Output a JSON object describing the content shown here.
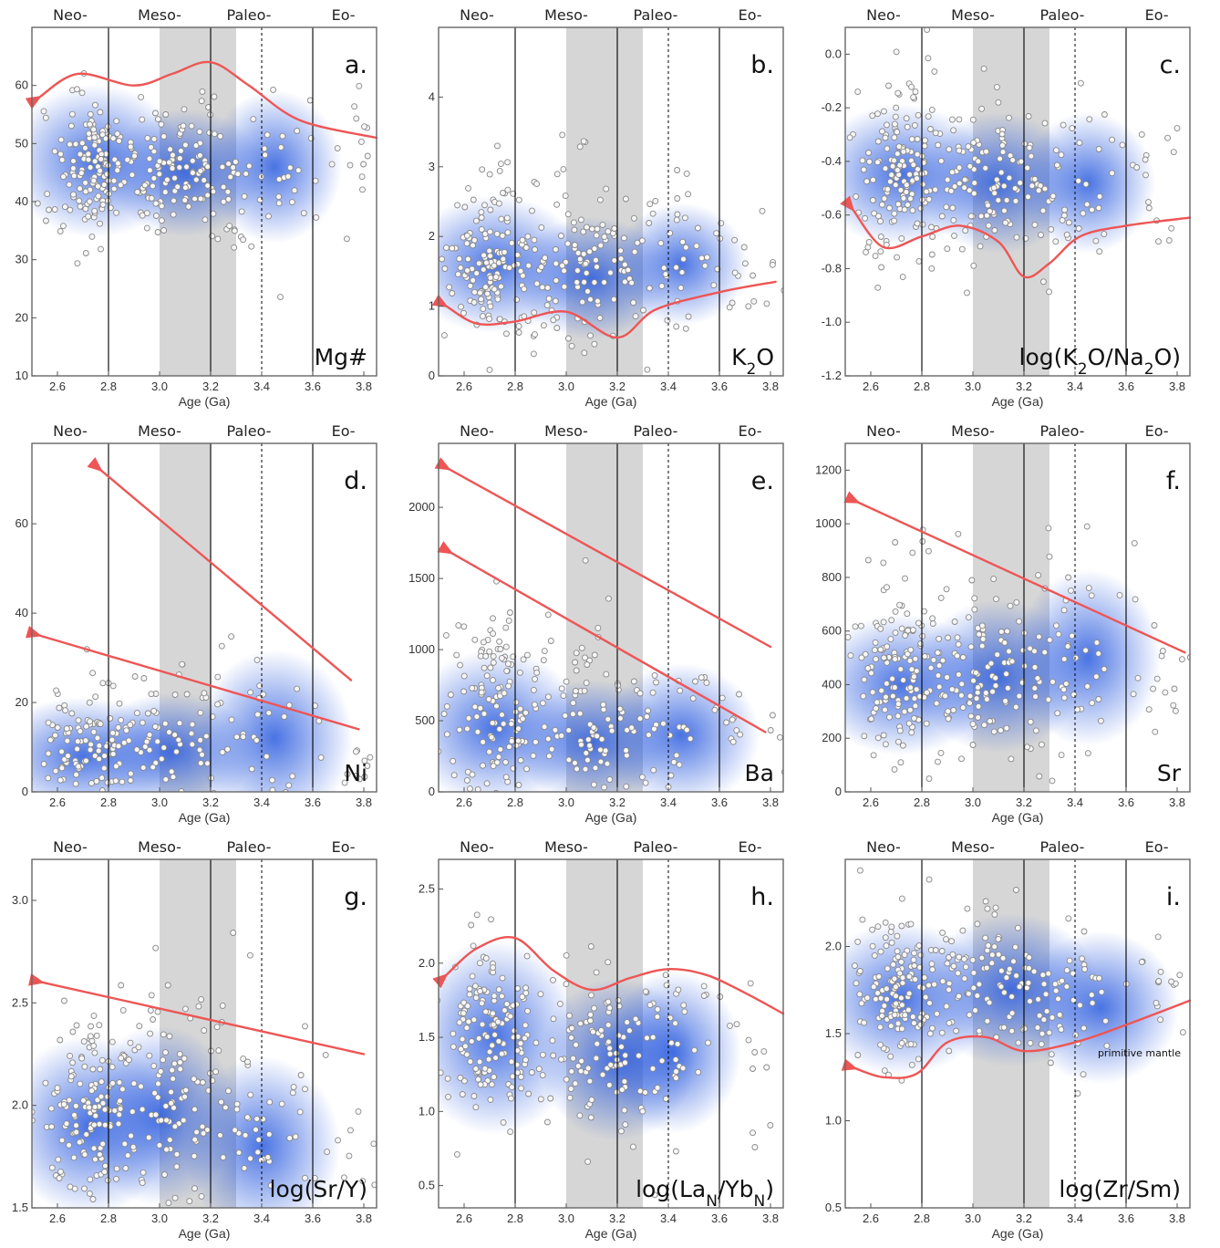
{
  "chart_data": [
    {
      "type": "scatter",
      "panel_label": "a.",
      "variable_label": "Mg#",
      "xlabel": "Age (Ga)",
      "xlim": [
        2.5,
        3.85
      ],
      "ylim": [
        10,
        70
      ],
      "x_ticks": [
        "2.6",
        "2.8",
        "3.0",
        "3.2",
        "3.4",
        "3.6",
        "3.8"
      ],
      "y_ticks": [
        "10",
        "20",
        "30",
        "40",
        "50",
        "60"
      ],
      "eras": [
        "Neo-",
        "Meso-",
        "Paleo-",
        "Eo-"
      ],
      "era_boundaries": [
        2.8,
        3.2,
        3.6
      ],
      "dotted_line": 3.4,
      "shaded_interval": [
        3.0,
        3.3
      ],
      "density": [
        {
          "x": 2.75,
          "y": 47,
          "sx": 0.16,
          "sy": 6
        },
        {
          "x": 3.1,
          "y": 45,
          "sx": 0.14,
          "sy": 5
        },
        {
          "x": 3.45,
          "y": 46,
          "sx": 0.12,
          "sy": 6
        }
      ],
      "scatter_clusters": [
        {
          "x": 2.72,
          "y": 46,
          "sx": 0.09,
          "sy": 6,
          "n": 150
        },
        {
          "x": 3.05,
          "y": 45,
          "sx": 0.12,
          "sy": 6,
          "n": 110
        },
        {
          "x": 3.4,
          "y": 45,
          "sx": 0.12,
          "sy": 7,
          "n": 50
        },
        {
          "x": 3.75,
          "y": 48,
          "sx": 0.06,
          "sy": 5,
          "n": 14
        }
      ],
      "trend_lines": [
        {
          "arrow": "start",
          "points": [
            [
              2.53,
              58
            ],
            [
              2.68,
              62
            ],
            [
              2.9,
              60
            ],
            [
              3.05,
              62
            ],
            [
              3.2,
              64
            ],
            [
              3.35,
              60
            ],
            [
              3.55,
              54
            ],
            [
              3.85,
              51
            ]
          ]
        }
      ]
    },
    {
      "type": "scatter",
      "panel_label": "b.",
      "variable_label": "K2O",
      "xlabel": "Age (Ga)",
      "xlim": [
        2.5,
        3.85
      ],
      "ylim": [
        0,
        5
      ],
      "x_ticks": [
        "2.6",
        "2.8",
        "3.0",
        "3.2",
        "3.4",
        "3.6",
        "3.8"
      ],
      "y_ticks": [
        "0",
        "1",
        "2",
        "3",
        "4"
      ],
      "eras": [
        "Neo-",
        "Meso-",
        "Paleo-",
        "Eo-"
      ],
      "era_boundaries": [
        2.8,
        3.2,
        3.6
      ],
      "dotted_line": 3.4,
      "shaded_interval": [
        3.0,
        3.3
      ],
      "density": [
        {
          "x": 2.72,
          "y": 1.6,
          "sx": 0.16,
          "sy": 0.45
        },
        {
          "x": 3.1,
          "y": 1.4,
          "sx": 0.14,
          "sy": 0.4
        },
        {
          "x": 3.45,
          "y": 1.6,
          "sx": 0.12,
          "sy": 0.4
        }
      ],
      "scatter_clusters": [
        {
          "x": 2.72,
          "y": 1.7,
          "sx": 0.09,
          "sy": 0.6,
          "n": 150
        },
        {
          "x": 3.05,
          "y": 1.6,
          "sx": 0.12,
          "sy": 0.6,
          "n": 110
        },
        {
          "x": 3.4,
          "y": 1.7,
          "sx": 0.12,
          "sy": 0.6,
          "n": 50
        },
        {
          "x": 3.75,
          "y": 1.6,
          "sx": 0.06,
          "sy": 0.5,
          "n": 14
        }
      ],
      "trend_lines": [
        {
          "arrow": "start",
          "points": [
            [
              2.53,
              1.0
            ],
            [
              2.65,
              0.75
            ],
            [
              2.8,
              0.78
            ],
            [
              3.0,
              0.92
            ],
            [
              3.2,
              0.55
            ],
            [
              3.35,
              0.95
            ],
            [
              3.6,
              1.2
            ],
            [
              3.82,
              1.35
            ]
          ]
        }
      ]
    },
    {
      "type": "scatter",
      "panel_label": "c.",
      "variable_label": "log(K2O/Na2O)",
      "xlabel": "Age (Ga)",
      "xlim": [
        2.5,
        3.85
      ],
      "ylim": [
        -1.2,
        0.1
      ],
      "x_ticks": [
        "2.6",
        "2.8",
        "3.0",
        "3.2",
        "3.4",
        "3.6",
        "3.8"
      ],
      "y_ticks": [
        "-1.2",
        "-1.0",
        "-0.8",
        "-0.6",
        "-0.4",
        "-0.2",
        "0.0"
      ],
      "eras": [
        "Neo-",
        "Meso-",
        "Paleo-",
        "Eo-"
      ],
      "era_boundaries": [
        2.8,
        3.2,
        3.6
      ],
      "dotted_line": 3.4,
      "shaded_interval": [
        3.0,
        3.3
      ],
      "density": [
        {
          "x": 2.72,
          "y": -0.45,
          "sx": 0.16,
          "sy": 0.12
        },
        {
          "x": 3.1,
          "y": -0.48,
          "sx": 0.14,
          "sy": 0.12
        },
        {
          "x": 3.45,
          "y": -0.48,
          "sx": 0.12,
          "sy": 0.12
        }
      ],
      "scatter_clusters": [
        {
          "x": 2.72,
          "y": -0.45,
          "sx": 0.09,
          "sy": 0.18,
          "n": 150
        },
        {
          "x": 3.05,
          "y": -0.45,
          "sx": 0.12,
          "sy": 0.16,
          "n": 110
        },
        {
          "x": 3.4,
          "y": -0.5,
          "sx": 0.12,
          "sy": 0.16,
          "n": 50
        },
        {
          "x": 3.75,
          "y": -0.5,
          "sx": 0.06,
          "sy": 0.15,
          "n": 14
        }
      ],
      "trend_lines": [
        {
          "arrow": "start",
          "points": [
            [
              2.53,
              -0.58
            ],
            [
              2.65,
              -0.72
            ],
            [
              2.8,
              -0.68
            ],
            [
              2.95,
              -0.64
            ],
            [
              3.1,
              -0.7
            ],
            [
              3.2,
              -0.83
            ],
            [
              3.3,
              -0.78
            ],
            [
              3.42,
              -0.68
            ],
            [
              3.6,
              -0.64
            ],
            [
              3.85,
              -0.61
            ]
          ]
        }
      ]
    },
    {
      "type": "scatter",
      "panel_label": "d.",
      "variable_label": "Ni",
      "xlabel": "Age (Ga)",
      "xlim": [
        2.5,
        3.85
      ],
      "ylim": [
        0,
        78
      ],
      "x_ticks": [
        "2.6",
        "2.8",
        "3.0",
        "3.2",
        "3.4",
        "3.6",
        "3.8"
      ],
      "y_ticks": [
        "0",
        "20",
        "40",
        "60"
      ],
      "eras": [
        "Neo-",
        "Meso-",
        "Paleo-",
        "Eo-"
      ],
      "era_boundaries": [
        2.8,
        3.2,
        3.6
      ],
      "dotted_line": 3.4,
      "shaded_interval": [
        3.0,
        3.2
      ],
      "density": [
        {
          "x": 2.7,
          "y": 8,
          "sx": 0.17,
          "sy": 6
        },
        {
          "x": 3.05,
          "y": 9,
          "sx": 0.15,
          "sy": 6
        },
        {
          "x": 3.45,
          "y": 12,
          "sx": 0.14,
          "sy": 9
        }
      ],
      "scatter_clusters": [
        {
          "x": 2.7,
          "y": 10,
          "sx": 0.09,
          "sy": 8,
          "n": 100
        },
        {
          "x": 3.0,
          "y": 12,
          "sx": 0.12,
          "sy": 9,
          "n": 70
        },
        {
          "x": 3.4,
          "y": 14,
          "sx": 0.13,
          "sy": 10,
          "n": 40
        },
        {
          "x": 3.75,
          "y": 6,
          "sx": 0.06,
          "sy": 4,
          "n": 10
        }
      ],
      "trend_lines": [
        {
          "arrow": "start",
          "points": [
            [
              2.53,
              35
            ],
            [
              3.78,
              14
            ]
          ]
        },
        {
          "arrow": "start",
          "points": [
            [
              2.77,
              72
            ],
            [
              3.75,
              25
            ]
          ]
        }
      ]
    },
    {
      "type": "scatter",
      "panel_label": "e.",
      "variable_label": "Ba",
      "xlabel": "Age (Ga)",
      "xlim": [
        2.5,
        3.85
      ],
      "ylim": [
        0,
        2450
      ],
      "x_ticks": [
        "2.6",
        "2.8",
        "3.0",
        "3.2",
        "3.4",
        "3.6",
        "3.8"
      ],
      "y_ticks": [
        "0",
        "500",
        "1000",
        "1500",
        "2000"
      ],
      "eras": [
        "Neo-",
        "Meso-",
        "Paleo-",
        "Eo-"
      ],
      "era_boundaries": [
        2.8,
        3.2,
        3.6
      ],
      "dotted_line": 3.4,
      "shaded_interval": [
        3.0,
        3.3
      ],
      "density": [
        {
          "x": 2.72,
          "y": 450,
          "sx": 0.16,
          "sy": 250
        },
        {
          "x": 3.1,
          "y": 350,
          "sx": 0.14,
          "sy": 200
        },
        {
          "x": 3.45,
          "y": 400,
          "sx": 0.14,
          "sy": 230
        }
      ],
      "scatter_clusters": [
        {
          "x": 2.72,
          "y": 550,
          "sx": 0.09,
          "sy": 400,
          "n": 140
        },
        {
          "x": 3.05,
          "y": 500,
          "sx": 0.12,
          "sy": 350,
          "n": 90
        },
        {
          "x": 3.4,
          "y": 500,
          "sx": 0.13,
          "sy": 300,
          "n": 45
        },
        {
          "x": 3.75,
          "y": 500,
          "sx": 0.06,
          "sy": 250,
          "n": 10
        }
      ],
      "trend_lines": [
        {
          "arrow": "start",
          "points": [
            [
              2.54,
              2270
            ],
            [
              3.8,
              1020
            ]
          ]
        },
        {
          "arrow": "start",
          "points": [
            [
              2.55,
              1680
            ],
            [
              3.78,
              420
            ]
          ]
        }
      ]
    },
    {
      "type": "scatter",
      "panel_label": "f.",
      "variable_label": "Sr",
      "xlabel": "Age (Ga)",
      "xlim": [
        2.5,
        3.85
      ],
      "ylim": [
        0,
        1300
      ],
      "x_ticks": [
        "2.6",
        "2.8",
        "3.0",
        "3.2",
        "3.4",
        "3.6",
        "3.8"
      ],
      "y_ticks": [
        "0",
        "200",
        "400",
        "600",
        "800",
        "1000",
        "1200"
      ],
      "eras": [
        "Neo-",
        "Meso-",
        "Paleo-",
        "Eo-"
      ],
      "era_boundaries": [
        2.8,
        3.2,
        3.6
      ],
      "dotted_line": 3.4,
      "shaded_interval": [
        3.0,
        3.3
      ],
      "density": [
        {
          "x": 2.72,
          "y": 400,
          "sx": 0.16,
          "sy": 120
        },
        {
          "x": 3.1,
          "y": 430,
          "sx": 0.15,
          "sy": 130
        },
        {
          "x": 3.45,
          "y": 500,
          "sx": 0.13,
          "sy": 150
        }
      ],
      "scatter_clusters": [
        {
          "x": 2.72,
          "y": 450,
          "sx": 0.09,
          "sy": 180,
          "n": 150
        },
        {
          "x": 3.05,
          "y": 460,
          "sx": 0.12,
          "sy": 170,
          "n": 110
        },
        {
          "x": 3.4,
          "y": 500,
          "sx": 0.12,
          "sy": 170,
          "n": 50
        },
        {
          "x": 3.75,
          "y": 400,
          "sx": 0.06,
          "sy": 130,
          "n": 14
        }
      ],
      "trend_lines": [
        {
          "arrow": "start",
          "points": [
            [
              2.55,
              1080
            ],
            [
              3.83,
              520
            ]
          ]
        }
      ]
    },
    {
      "type": "scatter",
      "panel_label": "g.",
      "variable_label": "log(Sr/Y)",
      "xlabel": "Age (Ga)",
      "xlim": [
        2.5,
        3.85
      ],
      "ylim": [
        1.5,
        3.2
      ],
      "x_ticks": [
        "2.6",
        "2.8",
        "3.0",
        "3.2",
        "3.4",
        "3.6",
        "3.8"
      ],
      "y_ticks": [
        "1.5",
        "2.0",
        "2.5",
        "3.0"
      ],
      "eras": [
        "Neo-",
        "Meso-",
        "Paleo-",
        "Eo-"
      ],
      "era_boundaries": [
        2.8,
        3.2,
        3.6
      ],
      "dotted_line": 3.4,
      "shaded_interval": [
        3.0,
        3.3
      ],
      "density": [
        {
          "x": 2.72,
          "y": 1.9,
          "sx": 0.15,
          "sy": 0.2
        },
        {
          "x": 3.0,
          "y": 1.95,
          "sx": 0.14,
          "sy": 0.2
        },
        {
          "x": 3.4,
          "y": 1.8,
          "sx": 0.14,
          "sy": 0.2
        }
      ],
      "scatter_clusters": [
        {
          "x": 2.72,
          "y": 2.0,
          "sx": 0.09,
          "sy": 0.25,
          "n": 150
        },
        {
          "x": 3.05,
          "y": 2.0,
          "sx": 0.12,
          "sy": 0.28,
          "n": 100
        },
        {
          "x": 3.4,
          "y": 1.95,
          "sx": 0.12,
          "sy": 0.25,
          "n": 45
        },
        {
          "x": 3.75,
          "y": 1.8,
          "sx": 0.06,
          "sy": 0.15,
          "n": 12
        }
      ],
      "trend_lines": [
        {
          "arrow": "start",
          "points": [
            [
              2.54,
              2.6
            ],
            [
              3.8,
              2.25
            ]
          ]
        }
      ]
    },
    {
      "type": "scatter",
      "panel_label": "h.",
      "variable_label": "log(LaN/YbN)",
      "xlabel": "Age (Ga)",
      "xlim": [
        2.5,
        3.85
      ],
      "ylim": [
        0.35,
        2.7
      ],
      "x_ticks": [
        "2.6",
        "2.8",
        "3.0",
        "3.2",
        "3.4",
        "3.6",
        "3.8"
      ],
      "y_ticks": [
        "0.5",
        "1.0",
        "1.5",
        "2.0",
        "2.5"
      ],
      "eras": [
        "Neo-",
        "Meso-",
        "Paleo-",
        "Eo-"
      ],
      "era_boundaries": [
        2.8,
        3.2,
        3.6
      ],
      "dotted_line": 3.4,
      "shaded_interval": [
        3.0,
        3.3
      ],
      "density": [
        {
          "x": 2.72,
          "y": 1.5,
          "sx": 0.15,
          "sy": 0.3
        },
        {
          "x": 3.2,
          "y": 1.35,
          "sx": 0.14,
          "sy": 0.25
        },
        {
          "x": 3.42,
          "y": 1.4,
          "sx": 0.12,
          "sy": 0.25
        }
      ],
      "scatter_clusters": [
        {
          "x": 2.72,
          "y": 1.5,
          "sx": 0.09,
          "sy": 0.3,
          "n": 150
        },
        {
          "x": 3.1,
          "y": 1.45,
          "sx": 0.12,
          "sy": 0.3,
          "n": 90
        },
        {
          "x": 3.4,
          "y": 1.4,
          "sx": 0.12,
          "sy": 0.3,
          "n": 45
        },
        {
          "x": 3.75,
          "y": 1.3,
          "sx": 0.06,
          "sy": 0.3,
          "n": 10
        }
      ],
      "trend_lines": [
        {
          "arrow": "start",
          "points": [
            [
              2.53,
              1.92
            ],
            [
              2.65,
              2.1
            ],
            [
              2.8,
              2.17
            ],
            [
              2.95,
              1.95
            ],
            [
              3.1,
              1.82
            ],
            [
              3.25,
              1.9
            ],
            [
              3.4,
              1.96
            ],
            [
              3.55,
              1.92
            ],
            [
              3.7,
              1.8
            ],
            [
              3.85,
              1.66
            ]
          ]
        }
      ]
    },
    {
      "type": "scatter",
      "panel_label": "i.",
      "variable_label": "log(Zr/Sm)",
      "annotation": "primitive mantle",
      "xlabel": "Age (Ga)",
      "xlim": [
        2.5,
        3.85
      ],
      "ylim": [
        0.5,
        2.5
      ],
      "x_ticks": [
        "2.6",
        "2.8",
        "3.0",
        "3.2",
        "3.4",
        "3.6",
        "3.8"
      ],
      "y_ticks": [
        "0.5",
        "1.0",
        "1.5",
        "2.0"
      ],
      "eras": [
        "Neo-",
        "Meso-",
        "Paleo-",
        "Eo-"
      ],
      "era_boundaries": [
        2.8,
        3.2,
        3.6
      ],
      "dotted_line": 3.4,
      "shaded_interval": [
        3.0,
        3.3
      ],
      "density": [
        {
          "x": 2.72,
          "y": 1.7,
          "sx": 0.16,
          "sy": 0.2
        },
        {
          "x": 3.15,
          "y": 1.75,
          "sx": 0.16,
          "sy": 0.2
        },
        {
          "x": 3.5,
          "y": 1.65,
          "sx": 0.14,
          "sy": 0.2
        }
      ],
      "scatter_clusters": [
        {
          "x": 2.72,
          "y": 1.75,
          "sx": 0.09,
          "sy": 0.22,
          "n": 150
        },
        {
          "x": 3.05,
          "y": 1.75,
          "sx": 0.12,
          "sy": 0.2,
          "n": 100
        },
        {
          "x": 3.4,
          "y": 1.7,
          "sx": 0.12,
          "sy": 0.2,
          "n": 45
        },
        {
          "x": 3.75,
          "y": 1.75,
          "sx": 0.06,
          "sy": 0.15,
          "n": 12
        }
      ],
      "trend_lines": [
        {
          "arrow": "start",
          "points": [
            [
              2.54,
              1.3
            ],
            [
              2.65,
              1.25
            ],
            [
              2.78,
              1.27
            ],
            [
              2.9,
              1.45
            ],
            [
              3.05,
              1.48
            ],
            [
              3.2,
              1.4
            ],
            [
              3.4,
              1.45
            ],
            [
              3.6,
              1.55
            ],
            [
              3.85,
              1.69
            ]
          ]
        }
      ]
    }
  ],
  "colors": {
    "density": "#2255dd",
    "trend": "#ee5555",
    "shade": "#d6d6d6",
    "point_fill": "#f7f7f7",
    "point_edge": "#888888"
  }
}
